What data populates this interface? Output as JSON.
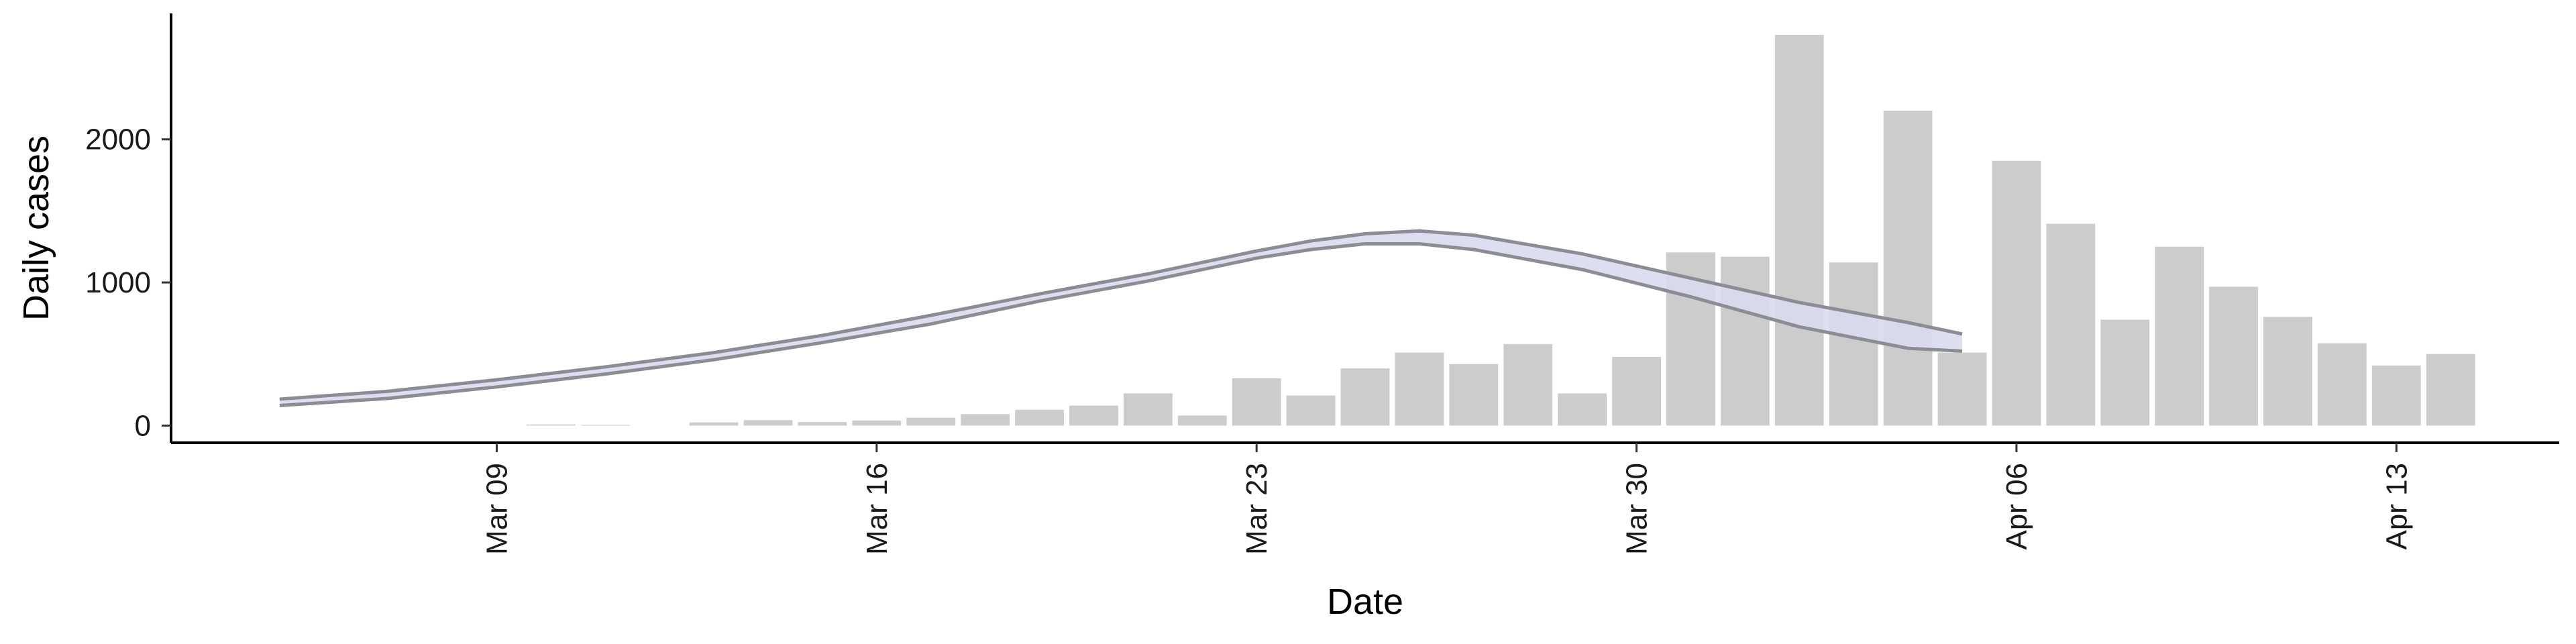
{
  "chart_data": {
    "type": "bar",
    "title": "",
    "xlabel": "Date",
    "ylabel": "Daily cases",
    "x_axis": "date",
    "xlim": [
      "2020-03-03",
      "2020-04-16"
    ],
    "ylim": [
      -120,
      2880
    ],
    "x_ticks": [
      {
        "date": "2020-03-09",
        "label": "Mar 09"
      },
      {
        "date": "2020-03-16",
        "label": "Mar 16"
      },
      {
        "date": "2020-03-23",
        "label": "Mar 23"
      },
      {
        "date": "2020-03-30",
        "label": "Mar 30"
      },
      {
        "date": "2020-04-06",
        "label": "Apr 06"
      },
      {
        "date": "2020-04-13",
        "label": "Apr 13"
      }
    ],
    "y_ticks": [
      0,
      1000,
      2000
    ],
    "tick_label_rotation_x": "vertical",
    "grid": false,
    "legend": "none",
    "bars": {
      "color": "#cccccc",
      "dates": [
        "2020-03-10",
        "2020-03-11",
        "2020-03-13",
        "2020-03-14",
        "2020-03-15",
        "2020-03-16",
        "2020-03-17",
        "2020-03-18",
        "2020-03-19",
        "2020-03-20",
        "2020-03-21",
        "2020-03-22",
        "2020-03-23",
        "2020-03-24",
        "2020-03-25",
        "2020-03-26",
        "2020-03-27",
        "2020-03-28",
        "2020-03-29",
        "2020-03-30",
        "2020-03-31",
        "2020-04-01",
        "2020-04-02",
        "2020-04-03",
        "2020-04-04",
        "2020-04-05",
        "2020-04-06",
        "2020-04-07",
        "2020-04-08",
        "2020-04-09",
        "2020-04-10",
        "2020-04-11",
        "2020-04-12",
        "2020-04-13",
        "2020-04-14"
      ],
      "values": [
        8,
        5,
        22,
        38,
        25,
        35,
        55,
        80,
        110,
        140,
        225,
        70,
        330,
        210,
        400,
        510,
        430,
        570,
        225,
        480,
        1210,
        1180,
        2730,
        1140,
        2200,
        510,
        1850,
        1410,
        740,
        1250,
        970,
        760,
        575,
        420,
        500
      ]
    },
    "series": [
      {
        "color": "#8c8c94",
        "band_color": "#d9dcee",
        "dates": [
          "2020-03-05",
          "2020-03-07",
          "2020-03-09",
          "2020-03-11",
          "2020-03-13",
          "2020-03-15",
          "2020-03-17",
          "2020-03-19",
          "2020-03-21",
          "2020-03-23",
          "2020-03-24",
          "2020-03-25",
          "2020-03-26",
          "2020-03-27",
          "2020-03-29",
          "2020-03-31",
          "2020-04-02",
          "2020-04-04",
          "2020-04-05"
        ],
        "upper": [
          185,
          240,
          320,
          410,
          510,
          630,
          770,
          920,
          1060,
          1220,
          1290,
          1340,
          1360,
          1330,
          1200,
          1030,
          860,
          720,
          640
        ],
        "lower": [
          140,
          190,
          270,
          360,
          460,
          580,
          710,
          870,
          1010,
          1170,
          1230,
          1270,
          1270,
          1230,
          1090,
          900,
          690,
          540,
          520
        ]
      }
    ]
  }
}
